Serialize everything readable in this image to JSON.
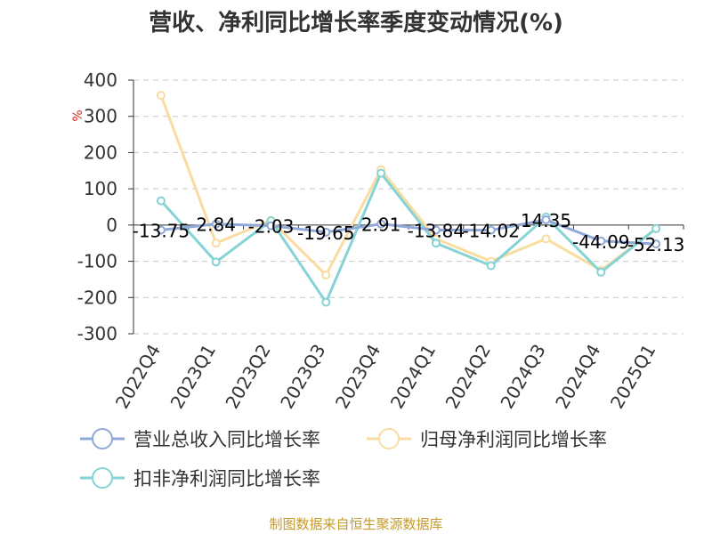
{
  "chart_data": {
    "type": "line",
    "title": "营收、净利同比增长率季度变动情况(%)",
    "ylabel": "%",
    "categories": [
      "2022Q4",
      "2023Q1",
      "2023Q2",
      "2023Q3",
      "2023Q4",
      "2024Q1",
      "2024Q2",
      "2024Q3",
      "2024Q4",
      "2025Q1"
    ],
    "ylim": [
      -300,
      400
    ],
    "yticks": [
      400,
      300,
      200,
      100,
      0,
      -100,
      -200,
      -300
    ],
    "grid": true,
    "legend_position": "bottom",
    "series": [
      {
        "name": "营业总收入同比增长率",
        "color": "#8fa8d8",
        "values": [
          -13.75,
          2.84,
          -2.03,
          -19.65,
          2.91,
          -13.84,
          -14.02,
          14.35,
          -44.09,
          -52.13
        ],
        "data_labels": [
          "-13.75",
          "2.84",
          "-2.03",
          "-19.65",
          "2.91",
          "-13.84",
          "-14.02",
          "14.35",
          "-44.09",
          "-52.13"
        ]
      },
      {
        "name": "归母净利润同比增长率",
        "color": "#f9dca0",
        "values": [
          358,
          -50,
          13,
          -138,
          153,
          -38,
          -100,
          -38,
          -125,
          -10
        ]
      },
      {
        "name": "扣非净利润同比增长率",
        "color": "#86d3d6",
        "values": [
          67,
          -102,
          12,
          -213,
          143,
          -50,
          -112,
          22,
          -130,
          -10
        ]
      }
    ]
  },
  "footer": "制图数据来自恒生聚源数据库"
}
